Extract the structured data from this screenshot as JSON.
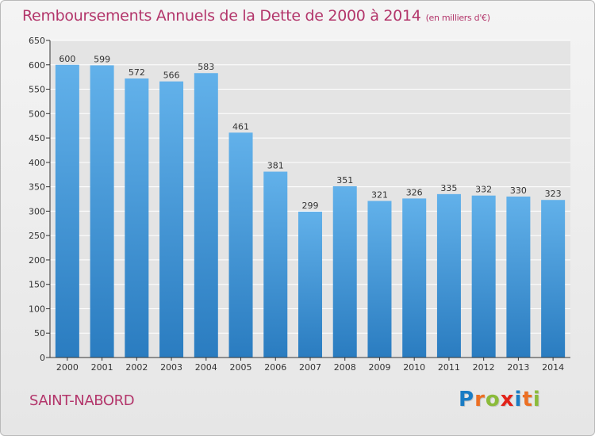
{
  "title_main": "Remboursements Annuels de la Dette de 2000 à 2014",
  "title_unit": "(en milliers d'€)",
  "commune": "SAINT-NABORD",
  "brand": {
    "name": "Proxiti",
    "letters": [
      {
        "char": "P",
        "color": "#1a7cc4"
      },
      {
        "char": "r",
        "color": "#ec6f23"
      },
      {
        "char": "o",
        "color": "#8bbb3a"
      },
      {
        "char": "x",
        "color": "#e2231a"
      },
      {
        "char": "i",
        "color": "#1a7cc4"
      },
      {
        "char": "t",
        "color": "#ec6f23"
      },
      {
        "char": "i",
        "color": "#8bbb3a"
      }
    ]
  },
  "colors": {
    "title": "#b3366b",
    "bar_top": "#62b1ea",
    "bar_bottom": "#2a7cc0",
    "grid": "#ffffff",
    "axis": "#333333"
  },
  "chart_data": {
    "type": "bar",
    "title": "Remboursements Annuels de la Dette de 2000 à 2014",
    "subtitle": "(en milliers d'€)",
    "xlabel": "",
    "ylabel": "",
    "categories": [
      "2000",
      "2001",
      "2002",
      "2003",
      "2004",
      "2005",
      "2006",
      "2007",
      "2008",
      "2009",
      "2010",
      "2011",
      "2012",
      "2013",
      "2014"
    ],
    "values": [
      600,
      599,
      572,
      566,
      583,
      461,
      381,
      299,
      351,
      321,
      326,
      335,
      332,
      330,
      323
    ],
    "ylim": [
      0,
      650
    ],
    "yticks": [
      0,
      50,
      100,
      150,
      200,
      250,
      300,
      350,
      400,
      450,
      500,
      550,
      600,
      650
    ],
    "grid": true,
    "legend": "none"
  }
}
